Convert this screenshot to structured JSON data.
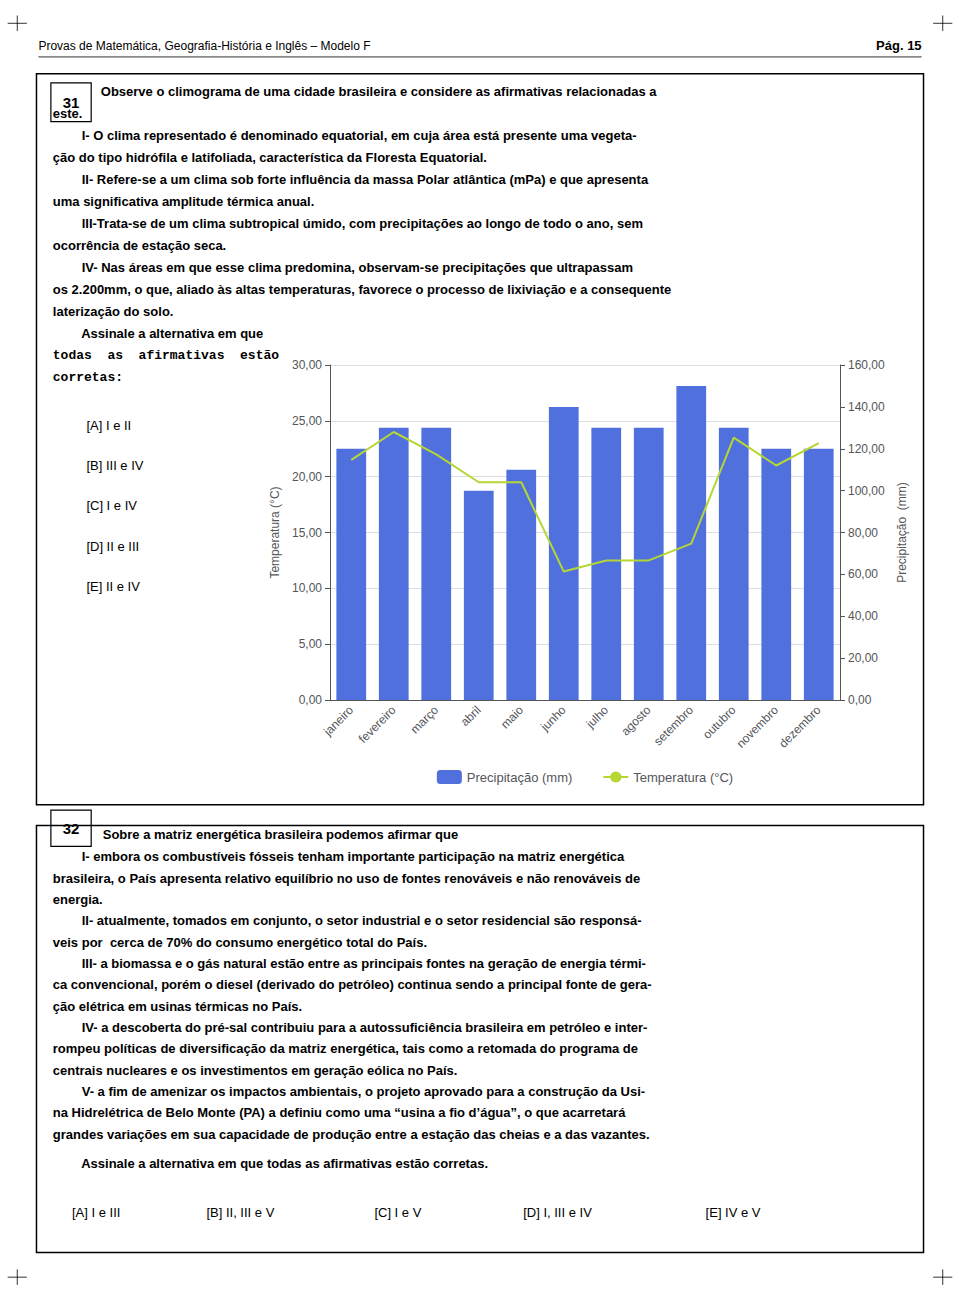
{
  "chart_data": {
    "type": "bar",
    "categories": [
      "janeiro",
      "fevereiro",
      "março",
      "abril",
      "maio",
      "junho",
      "julho",
      "agosto",
      "setembro",
      "outubro",
      "novembro",
      "dezembro"
    ],
    "series": [
      {
        "name": "Precipitação (mm)",
        "type": "bar",
        "axis": "y2",
        "values": [
          120,
          130,
          130,
          100,
          110,
          140,
          130,
          130,
          150,
          130,
          120,
          120
        ]
      },
      {
        "name": "Temperatura (°C)",
        "type": "line",
        "values": [
          21.5,
          24.0,
          22.0,
          19.5,
          19.5,
          11.5,
          12.5,
          12.5,
          14.0,
          23.5,
          21.0,
          23.0
        ]
      }
    ],
    "ylabel": "Temperatura (°C)",
    "y2label": "Precipitação  (mm)",
    "ylim": [
      0,
      30
    ],
    "yticks": [
      {
        "value": 0,
        "label": "0,00"
      },
      {
        "value": 5,
        "label": "5,00"
      },
      {
        "value": 10,
        "label": "10,00"
      },
      {
        "value": 15,
        "label": "15,00"
      },
      {
        "value": 20,
        "label": "20,00"
      },
      {
        "value": 25,
        "label": "25,00"
      },
      {
        "value": 30,
        "label": "30,00"
      }
    ],
    "y2lim": [
      0,
      160
    ],
    "y2ticks": [
      {
        "value": 0,
        "label": "0,00"
      },
      {
        "value": 20,
        "label": "20,00"
      },
      {
        "value": 40,
        "label": "40,00"
      },
      {
        "value": 60,
        "label": "60,00"
      },
      {
        "value": 80,
        "label": "80,00"
      },
      {
        "value": 100,
        "label": "100,00"
      },
      {
        "value": 120,
        "label": "120,00"
      },
      {
        "value": 140,
        "label": "140,00"
      },
      {
        "value": 160,
        "label": "160,00"
      }
    ],
    "grid": true,
    "legend": "bottom",
    "annotations": [
      "Provas de Matemática, Geografia-História e Inglês – Modelo F",
      "Pág. 15",
      "31",
      "Observe o climograma de uma cidade brasileira e considere as afirmativas relacionadas a",
      "este.",
      "        I- O clima representado é denominado equatorial, em cuja área está presente uma vegeta-",
      "ção do tipo hidrófila e latifoliada, característica da Floresta Equatorial.",
      "        II- Refere-se a um clima sob forte influência da massa Polar atlântica (mPa) e que apresenta",
      "uma significativa amplitude térmica anual.",
      "        III-Trata-se de um clima subtropical úmido, com precipitações ao longo de todo o ano, sem",
      "ocorrência de estação seca.",
      "        IV- Nas áreas em que esse clima predomina, observam-se precipitações que ultrapassam",
      "os 2.200mm, o que, aliado às altas temperaturas, favorece o processo de lixiviação e a consequente",
      "laterização do solo.",
      "        Assinale a alternativa em que",
      "todas  as  afirmativas  estão",
      "corretas:",
      "[A] I e II",
      "[B] III e IV",
      "[C] I e IV",
      "[D] II e III",
      "[E] II e IV",
      "32",
      "Sobre a matriz energética brasileira podemos afirmar que",
      "        I- embora os combustíveis fósseis tenham importante participação na matriz energética",
      "brasileira, o País apresenta relativo equilíbrio no uso de fontes renováveis e não renováveis de",
      "energia.",
      "        II- atualmente, tomados em conjunto, o setor industrial e o setor residencial são responsá-",
      "veis por  cerca de 70% do consumo energético total do País.",
      "        III- a biomassa e o gás natural estão entre as principais fontes na geração de energia térmi-",
      "ca convencional, porém o diesel (derivado do petróleo) continua sendo a principal fonte de gera-",
      "ção elétrica em usinas térmicas no País.",
      "        IV- a descoberta do pré-sal contribuiu para a autossuficiência brasileira em petróleo e inter-",
      "rompeu políticas de diversificação da matriz energética, tais como a retomada do programa de",
      "centrais nucleares e os investimentos em geração eólica no País.",
      "        V- a fim de amenizar os impactos ambientais, o projeto aprovado para a construção da Usi-",
      "na Hidrelétrica de Belo Monte (PA) a definiu como uma “usina a fio d’água”, o que acarretará",
      "grandes variações em sua capacidade de produção entre a estação das cheias e a das vazantes.",
      "        Assinale a alternativa em que todas as afirmativas estão corretas.",
      "[A] I e III",
      "[B] II, III e V",
      "[C] I e V",
      "[D] I, III e IV",
      "[E] IV e V"
    ]
  }
}
